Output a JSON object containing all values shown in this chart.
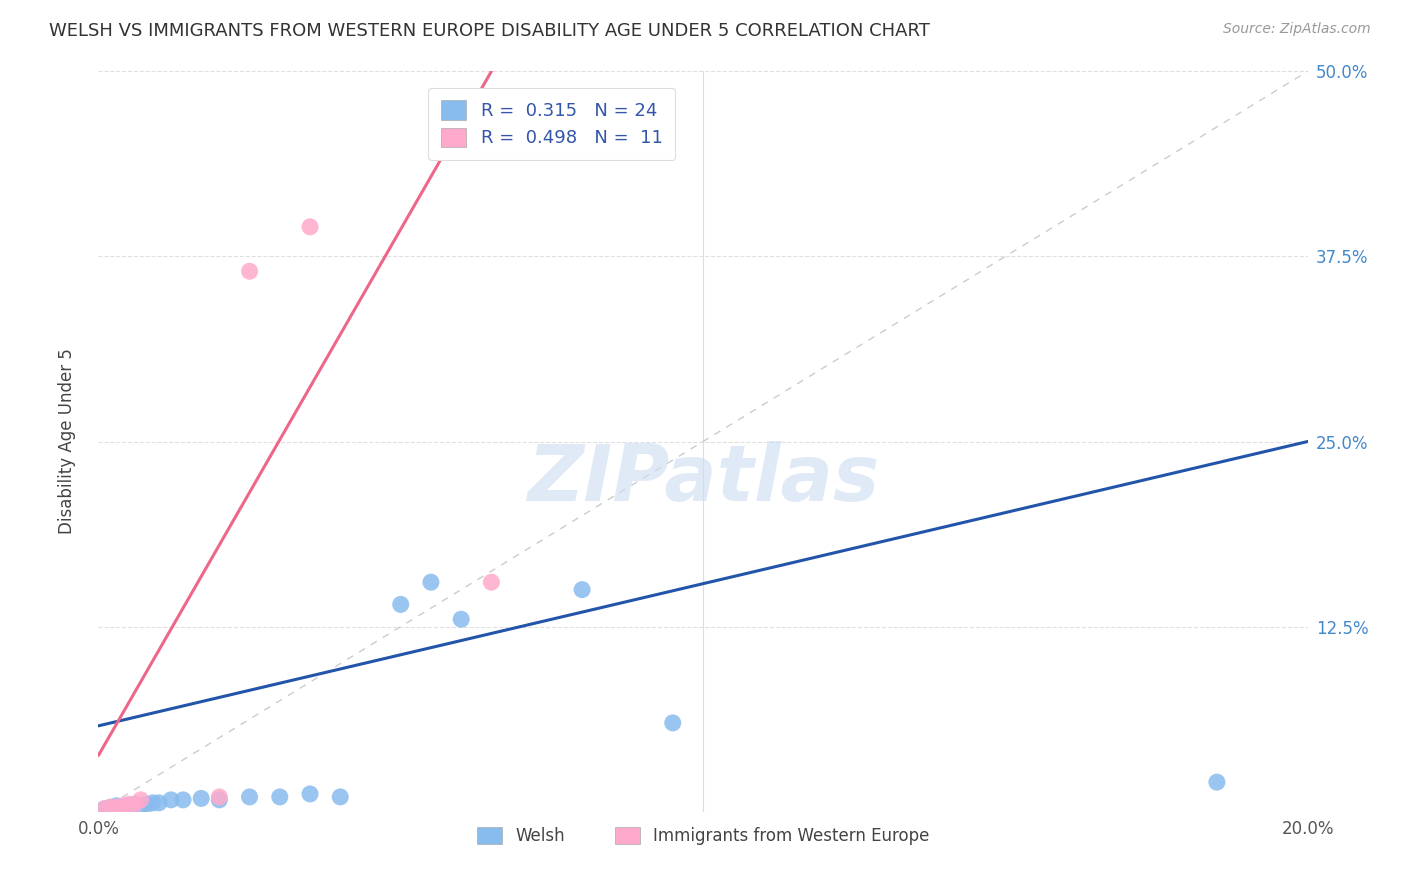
{
  "title": "WELSH VS IMMIGRANTS FROM WESTERN EUROPE DISABILITY AGE UNDER 5 CORRELATION CHART",
  "source": "Source: ZipAtlas.com",
  "ylabel": "Disability Age Under 5",
  "xlim": [
    0.0,
    0.2
  ],
  "ylim": [
    0.0,
    0.5
  ],
  "xticks": [
    0.0,
    0.05,
    0.1,
    0.15,
    0.2
  ],
  "yticks": [
    0.0,
    0.125,
    0.25,
    0.375,
    0.5
  ],
  "right_ytick_labels": [
    "",
    "12.5%",
    "25.0%",
    "37.5%",
    "50.0%"
  ],
  "left_ytick_labels": [
    "",
    "",
    "",
    "",
    ""
  ],
  "xtick_labels": [
    "0.0%",
    "",
    "",
    "",
    "20.0%"
  ],
  "legend1_r": "0.315",
  "legend1_n": "24",
  "legend2_r": "0.498",
  "legend2_n": "11",
  "watermark": "ZIPatlas",
  "blue_color": "#88bbee",
  "pink_color": "#ffaacc",
  "trendline_blue": "#2255aa",
  "trendline_pink": "#ee6688",
  "diagonal_color": "#cccccc",
  "welsh_points": [
    [
      0.001,
      0.002
    ],
    [
      0.002,
      0.003
    ],
    [
      0.003,
      0.004
    ],
    [
      0.004,
      0.003
    ],
    [
      0.005,
      0.004
    ],
    [
      0.006,
      0.005
    ],
    [
      0.007,
      0.004
    ],
    [
      0.008,
      0.005
    ],
    [
      0.009,
      0.006
    ],
    [
      0.01,
      0.006
    ],
    [
      0.012,
      0.008
    ],
    [
      0.014,
      0.008
    ],
    [
      0.017,
      0.009
    ],
    [
      0.02,
      0.008
    ],
    [
      0.025,
      0.01
    ],
    [
      0.03,
      0.01
    ],
    [
      0.035,
      0.012
    ],
    [
      0.04,
      0.01
    ],
    [
      0.05,
      0.14
    ],
    [
      0.055,
      0.155
    ],
    [
      0.06,
      0.13
    ],
    [
      0.08,
      0.15
    ],
    [
      0.095,
      0.06
    ],
    [
      0.185,
      0.02
    ]
  ],
  "immigrant_points": [
    [
      0.001,
      0.002
    ],
    [
      0.002,
      0.003
    ],
    [
      0.003,
      0.003
    ],
    [
      0.004,
      0.004
    ],
    [
      0.005,
      0.005
    ],
    [
      0.006,
      0.005
    ],
    [
      0.007,
      0.008
    ],
    [
      0.025,
      0.365
    ],
    [
      0.035,
      0.395
    ],
    [
      0.02,
      0.01
    ],
    [
      0.065,
      0.155
    ]
  ],
  "welsh_trendline_x": [
    0.0,
    0.2
  ],
  "welsh_trendline_y": [
    0.058,
    0.25
  ],
  "immigrant_trendline_x": [
    0.0,
    0.065
  ],
  "immigrant_trendline_y": [
    0.038,
    0.5
  ],
  "bottom_labels": [
    "Welsh",
    "Immigrants from Western Europe"
  ],
  "legend_fontsize": 13,
  "title_fontsize": 13,
  "vline_x": 0.1,
  "vline_color": "#dddddd"
}
